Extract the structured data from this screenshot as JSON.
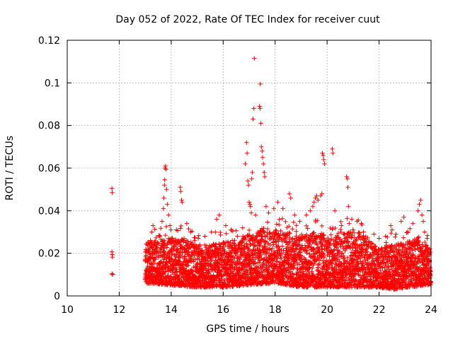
{
  "chart_data": {
    "type": "scatter",
    "title": "Day 052 of 2022, Rate Of TEC Index for receiver cuut",
    "xlabel": "GPS time / hours",
    "ylabel": "ROTI / TECUs",
    "xlim": [
      10,
      24
    ],
    "ylim": [
      0,
      0.12
    ],
    "xticks": [
      "10",
      "12",
      "14",
      "16",
      "18",
      "20",
      "22",
      "24"
    ],
    "yticks": [
      "0",
      "0.02",
      "0.04",
      "0.06",
      "0.08",
      "0.1",
      "0.12"
    ],
    "grid": true,
    "marker": "plus",
    "color": "#ff0000",
    "series": [
      {
        "points": [
          [
            11.72,
            0.0505
          ],
          [
            11.73,
            0.0485
          ],
          [
            11.72,
            0.0207
          ],
          [
            11.73,
            0.0194
          ],
          [
            11.74,
            0.0182
          ],
          [
            11.72,
            0.0104
          ],
          [
            11.75,
            0.0101
          ],
          [
            13.05,
            0.011
          ],
          [
            13.1,
            0.016
          ],
          [
            13.15,
            0.021
          ],
          [
            13.2,
            0.026
          ],
          [
            13.25,
            0.03
          ],
          [
            13.3,
            0.033
          ],
          [
            13.35,
            0.024
          ],
          [
            13.55,
            0.028
          ],
          [
            13.65,
            0.035
          ],
          [
            13.7,
            0.041
          ],
          [
            13.72,
            0.046
          ],
          [
            13.74,
            0.052
          ],
          [
            13.75,
            0.0545
          ],
          [
            13.76,
            0.06
          ],
          [
            13.78,
            0.061
          ],
          [
            13.8,
            0.0595
          ],
          [
            13.82,
            0.05
          ],
          [
            13.85,
            0.043
          ],
          [
            13.9,
            0.038
          ],
          [
            13.95,
            0.033
          ],
          [
            14.05,
            0.027
          ],
          [
            14.2,
            0.031
          ],
          [
            14.35,
            0.051
          ],
          [
            14.37,
            0.049
          ],
          [
            14.4,
            0.045
          ],
          [
            14.42,
            0.044
          ],
          [
            14.6,
            0.034
          ],
          [
            14.75,
            0.03
          ],
          [
            14.9,
            0.026
          ],
          [
            15.1,
            0.024
          ],
          [
            15.3,
            0.028
          ],
          [
            15.55,
            0.03
          ],
          [
            15.75,
            0.036
          ],
          [
            15.85,
            0.038
          ],
          [
            16.1,
            0.033
          ],
          [
            16.3,
            0.031
          ],
          [
            16.55,
            0.028
          ],
          [
            16.75,
            0.032
          ],
          [
            16.85,
            0.062
          ],
          [
            16.9,
            0.072
          ],
          [
            16.92,
            0.067
          ],
          [
            16.95,
            0.054
          ],
          [
            16.98,
            0.052
          ],
          [
            17.0,
            0.044
          ],
          [
            17.03,
            0.043
          ],
          [
            17.05,
            0.042
          ],
          [
            17.08,
            0.039
          ],
          [
            17.1,
            0.055
          ],
          [
            17.12,
            0.058
          ],
          [
            17.15,
            0.083
          ],
          [
            17.18,
            0.088
          ],
          [
            17.2,
            0.1115
          ],
          [
            17.25,
            0.038
          ],
          [
            17.4,
            0.089
          ],
          [
            17.42,
            0.088
          ],
          [
            17.43,
            0.0995
          ],
          [
            17.45,
            0.081
          ],
          [
            17.47,
            0.07
          ],
          [
            17.5,
            0.068
          ],
          [
            17.52,
            0.065
          ],
          [
            17.55,
            0.062
          ],
          [
            17.58,
            0.058
          ],
          [
            17.6,
            0.056
          ],
          [
            17.65,
            0.042
          ],
          [
            17.75,
            0.039
          ],
          [
            17.95,
            0.041
          ],
          [
            18.1,
            0.044
          ],
          [
            18.3,
            0.041
          ],
          [
            18.55,
            0.048
          ],
          [
            18.6,
            0.046
          ],
          [
            18.75,
            0.038
          ],
          [
            18.95,
            0.035
          ],
          [
            19.2,
            0.038
          ],
          [
            19.35,
            0.04
          ],
          [
            19.45,
            0.042
          ],
          [
            19.5,
            0.044
          ],
          [
            19.55,
            0.046
          ],
          [
            19.6,
            0.047
          ],
          [
            19.65,
            0.045
          ],
          [
            19.75,
            0.047
          ],
          [
            19.8,
            0.048
          ],
          [
            19.82,
            0.067
          ],
          [
            19.85,
            0.066
          ],
          [
            19.87,
            0.064
          ],
          [
            19.9,
            0.062
          ],
          [
            20.2,
            0.069
          ],
          [
            20.22,
            0.067
          ],
          [
            20.3,
            0.04
          ],
          [
            20.55,
            0.033
          ],
          [
            20.75,
            0.056
          ],
          [
            20.78,
            0.055
          ],
          [
            20.8,
            0.051
          ],
          [
            20.82,
            0.042
          ],
          [
            20.85,
            0.034
          ],
          [
            21.0,
            0.031
          ],
          [
            21.15,
            0.035
          ],
          [
            21.4,
            0.03
          ],
          [
            21.8,
            0.029
          ],
          [
            22.0,
            0.027
          ],
          [
            22.25,
            0.028
          ],
          [
            22.45,
            0.033
          ],
          [
            22.5,
            0.031
          ],
          [
            22.65,
            0.029
          ],
          [
            22.85,
            0.035
          ],
          [
            22.95,
            0.037
          ],
          [
            23.1,
            0.03
          ],
          [
            23.3,
            0.034
          ],
          [
            23.5,
            0.04
          ],
          [
            23.55,
            0.043
          ],
          [
            23.6,
            0.045
          ],
          [
            23.65,
            0.038
          ],
          [
            23.7,
            0.035
          ],
          [
            23.75,
            0.03
          ],
          [
            23.85,
            0.027
          ],
          [
            23.95,
            0.022
          ]
        ],
        "density_profile": {
          "x_start": 13.0,
          "x_end": 24.0,
          "x_step": 0.01,
          "y_min": 0.003,
          "y_typical_high": 0.022,
          "y_max_envelope": [
            [
              13.0,
              0.025
            ],
            [
              13.5,
              0.026
            ],
            [
              14.0,
              0.028
            ],
            [
              14.5,
              0.027
            ],
            [
              15.0,
              0.024
            ],
            [
              15.5,
              0.024
            ],
            [
              16.0,
              0.026
            ],
            [
              16.5,
              0.025
            ],
            [
              17.0,
              0.029
            ],
            [
              17.5,
              0.032
            ],
            [
              18.0,
              0.031
            ],
            [
              18.5,
              0.03
            ],
            [
              19.0,
              0.028
            ],
            [
              19.5,
              0.03
            ],
            [
              20.0,
              0.029
            ],
            [
              20.5,
              0.03
            ],
            [
              21.0,
              0.031
            ],
            [
              21.5,
              0.028
            ],
            [
              22.0,
              0.022
            ],
            [
              22.5,
              0.024
            ],
            [
              23.0,
              0.025
            ],
            [
              23.5,
              0.028
            ],
            [
              24.0,
              0.022
            ]
          ],
          "y_min_envelope": [
            [
              13.0,
              0.006
            ],
            [
              14.0,
              0.005
            ],
            [
              15.0,
              0.004
            ],
            [
              16.0,
              0.004
            ],
            [
              17.0,
              0.005
            ],
            [
              18.0,
              0.006
            ],
            [
              19.0,
              0.004
            ],
            [
              20.0,
              0.004
            ],
            [
              21.0,
              0.004
            ],
            [
              22.0,
              0.004
            ],
            [
              22.6,
              0.003
            ],
            [
              23.0,
              0.004
            ],
            [
              24.0,
              0.005
            ]
          ]
        }
      }
    ]
  }
}
